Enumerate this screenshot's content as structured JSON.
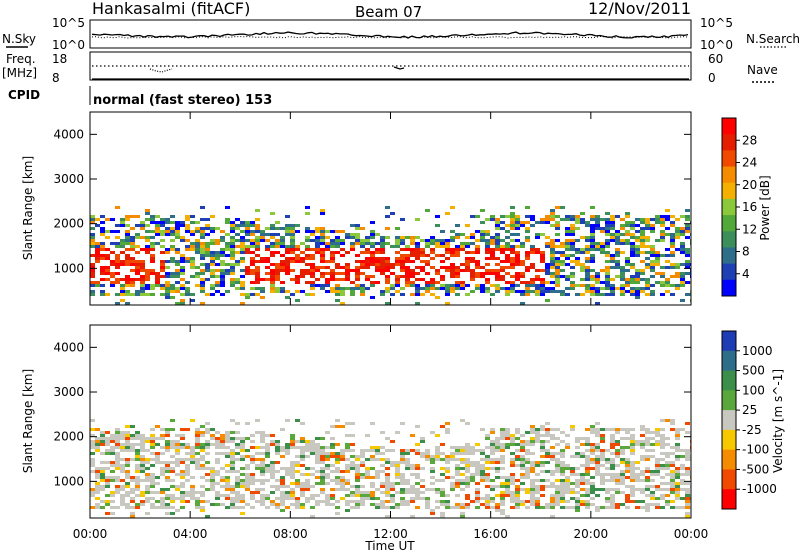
{
  "header": {
    "station": "Hankasalmi (fitACF)",
    "beam": "Beam 07",
    "date": "12/Nov/2011"
  },
  "noise_panel": {
    "left_label": "N.Sky",
    "right_label": "N.Search",
    "left_ticks": [
      "10^5",
      "10^0"
    ],
    "right_ticks": [
      "10^5",
      "10^0"
    ]
  },
  "freq_panel": {
    "left_label": [
      "Freq.",
      "[MHz]"
    ],
    "right_label": "Nave",
    "left_ticks": [
      "18",
      "8"
    ],
    "right_ticks": [
      "60",
      "0"
    ]
  },
  "cpid": {
    "label": "CPID",
    "mode": "normal (fast stereo) 153"
  },
  "chart_data": [
    {
      "type": "heatmap",
      "name": "Power",
      "ylabel": "Slant Range [km]",
      "ylim": [
        180,
        4500
      ],
      "yticks": [
        "1000",
        "2000",
        "3000",
        "4000"
      ],
      "xticks": [
        "00:00",
        "04:00",
        "08:00",
        "12:00",
        "16:00",
        "20:00",
        "00:00"
      ],
      "colorbar": {
        "label": "Power [dB]",
        "ticks": [
          "4",
          "8",
          "12",
          "16",
          "20",
          "24",
          "28"
        ],
        "colors": [
          "#0000ff",
          "#1f3fb4",
          "#2f6e8a",
          "#3c8f5a",
          "#53a83a",
          "#8cc83c",
          "#f4b000",
          "#f58c00",
          "#f04a00",
          "#e61e00",
          "#ff0000"
        ]
      }
    },
    {
      "type": "heatmap",
      "name": "Velocity",
      "ylabel": "Slant Range [km]",
      "ylim": [
        180,
        4500
      ],
      "yticks": [
        "1000",
        "2000",
        "3000",
        "4000"
      ],
      "xlabel": "Time UT",
      "xticks": [
        "00:00",
        "04:00",
        "08:00",
        "12:00",
        "16:00",
        "20:00",
        "00:00"
      ],
      "colorbar": {
        "label": "Velocity [m s^-1]",
        "ticks": [
          "1000",
          "500",
          "100",
          "25",
          "-25",
          "-100",
          "-500",
          "-1000"
        ],
        "colors": [
          "#1e3cb4",
          "#2f6e8a",
          "#3c8f4a",
          "#5aa83c",
          "#c8c8c0",
          "#f5c800",
          "#f58c00",
          "#f04a00",
          "#ff0000"
        ]
      }
    }
  ]
}
